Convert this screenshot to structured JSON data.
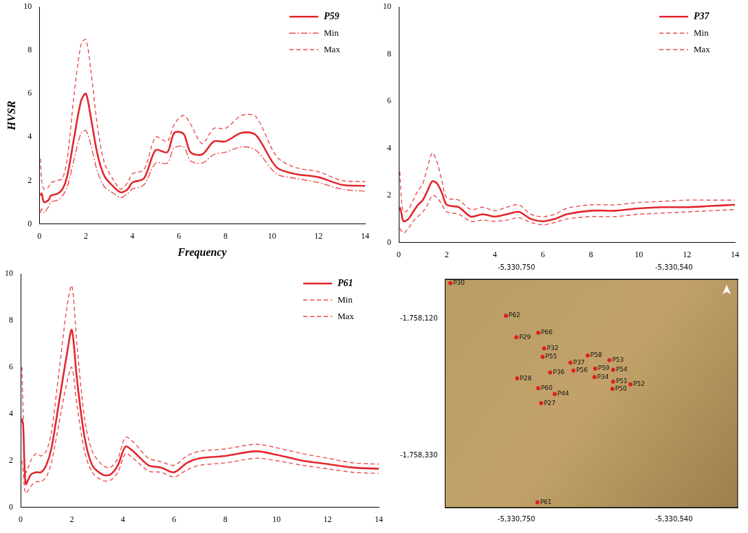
{
  "chart_data": [
    {
      "type": "line",
      "x_label": "Frequency",
      "y_label": "HVSR",
      "x": [
        0.05,
        0.1,
        0.2,
        0.4,
        0.5,
        0.8,
        1.0,
        1.2,
        1.5,
        1.8,
        2.0,
        2.2,
        2.5,
        2.8,
        3.2,
        3.5,
        3.8,
        4.0,
        4.5,
        5.0,
        5.5,
        5.8,
        6.2,
        6.5,
        7.0,
        7.5,
        8.0,
        8.7,
        9.3,
        10.2,
        11,
        12,
        13,
        14
      ],
      "series": [
        {
          "name": "P59",
          "color": "#e3262b",
          "line_style": "solid",
          "values": [
            1.3,
            1.4,
            1.0,
            1.1,
            1.3,
            1.4,
            1.6,
            2.2,
            4.0,
            5.7,
            6.0,
            5.0,
            3.2,
            2.2,
            1.7,
            1.45,
            1.6,
            1.9,
            2.1,
            3.4,
            3.3,
            4.2,
            4.15,
            3.3,
            3.2,
            3.8,
            3.8,
            4.2,
            4.1,
            2.6,
            2.3,
            2.15,
            1.8,
            1.75
          ]
        },
        {
          "name": "Min",
          "color": "#ec4a4a",
          "line_style": "dashdot",
          "values": [
            0.5,
            0.7,
            0.5,
            0.8,
            1.0,
            1.1,
            1.3,
            1.7,
            3.0,
            4.2,
            4.3,
            3.7,
            2.4,
            1.7,
            1.4,
            1.2,
            1.4,
            1.6,
            1.8,
            2.8,
            2.8,
            3.5,
            3.55,
            2.9,
            2.8,
            3.2,
            3.3,
            3.55,
            3.4,
            2.3,
            2.1,
            1.9,
            1.6,
            1.5
          ]
        },
        {
          "name": "Max",
          "color": "#ec4a4a",
          "line_style": "dashed",
          "values": [
            3.0,
            2.0,
            1.6,
            1.7,
            1.9,
            2.0,
            2.1,
            3.0,
            6.0,
            8.3,
            8.5,
            7.2,
            4.5,
            2.8,
            2.0,
            1.6,
            1.9,
            2.3,
            2.5,
            4.0,
            3.8,
            4.6,
            5.0,
            4.6,
            3.7,
            4.4,
            4.4,
            5.0,
            4.95,
            3.1,
            2.6,
            2.4,
            2.0,
            1.95
          ]
        }
      ],
      "xlim": [
        0,
        14
      ],
      "xticks": [
        0,
        2,
        4,
        6,
        8,
        10,
        12,
        14
      ],
      "ylim": [
        0,
        10
      ],
      "yticks": [
        0,
        2,
        4,
        6,
        8,
        10
      ],
      "grid": false,
      "legend": "upper right"
    },
    {
      "type": "line",
      "x": [
        0.05,
        0.1,
        0.2,
        0.4,
        0.6,
        0.8,
        1.0,
        1.2,
        1.4,
        1.6,
        1.8,
        2.0,
        2.5,
        3.0,
        3.5,
        4.0,
        4.5,
        5.0,
        5.5,
        6.0,
        6.5,
        7.0,
        8.0,
        9.0,
        10,
        11,
        12,
        13,
        14
      ],
      "series": [
        {
          "name": "P37",
          "color": "#e3262b",
          "line_style": "solid",
          "values": [
            1.5,
            1.3,
            0.9,
            1.0,
            1.3,
            1.6,
            1.8,
            2.2,
            2.6,
            2.5,
            2.1,
            1.6,
            1.5,
            1.1,
            1.2,
            1.1,
            1.2,
            1.3,
            1.0,
            0.9,
            1.0,
            1.2,
            1.35,
            1.35,
            1.45,
            1.5,
            1.5,
            1.55,
            1.6
          ]
        },
        {
          "name": "Min",
          "color": "#ec4a4a",
          "line_style": "dashed",
          "values": [
            0.6,
            0.5,
            0.4,
            0.6,
            0.9,
            1.1,
            1.3,
            1.6,
            2.0,
            1.9,
            1.6,
            1.3,
            1.2,
            0.9,
            0.95,
            0.9,
            0.95,
            1.05,
            0.85,
            0.75,
            0.85,
            1.0,
            1.1,
            1.1,
            1.2,
            1.25,
            1.3,
            1.35,
            1.4
          ]
        },
        {
          "name": "Max",
          "color": "#ec4a4a",
          "line_style": "dashed",
          "values": [
            3.0,
            2.0,
            1.3,
            1.4,
            1.8,
            2.2,
            2.5,
            3.2,
            3.8,
            3.4,
            2.6,
            1.9,
            1.8,
            1.4,
            1.5,
            1.35,
            1.5,
            1.6,
            1.2,
            1.1,
            1.2,
            1.45,
            1.6,
            1.6,
            1.7,
            1.75,
            1.8,
            1.8,
            1.8
          ]
        }
      ],
      "xlim": [
        0,
        14
      ],
      "xticks": [
        0,
        2,
        4,
        6,
        8,
        10,
        12,
        14
      ],
      "ylim": [
        0,
        10
      ],
      "yticks": [
        0,
        2,
        4,
        6,
        8,
        10
      ],
      "grid": false,
      "legend": "upper right"
    },
    {
      "type": "line",
      "x": [
        0.05,
        0.1,
        0.2,
        0.4,
        0.6,
        0.8,
        1.0,
        1.2,
        1.5,
        1.8,
        2.0,
        2.2,
        2.5,
        2.8,
        3.2,
        3.5,
        3.8,
        4.1,
        4.4,
        5.0,
        5.5,
        6.0,
        6.5,
        7.0,
        8.0,
        9.2,
        10,
        11,
        12,
        13,
        14
      ],
      "series": [
        {
          "name": "P61",
          "color": "#e3262b",
          "line_style": "solid",
          "values": [
            3.8,
            3.5,
            1.0,
            1.4,
            1.5,
            1.5,
            1.8,
            2.5,
            4.5,
            6.5,
            7.6,
            5.5,
            3.0,
            1.8,
            1.4,
            1.4,
            1.8,
            2.6,
            2.4,
            1.8,
            1.7,
            1.5,
            1.9,
            2.1,
            2.2,
            2.4,
            2.25,
            2.0,
            1.85,
            1.7,
            1.65
          ]
        },
        {
          "name": "Min",
          "color": "#ec4a4a",
          "line_style": "dashed",
          "values": [
            2.0,
            1.5,
            0.6,
            0.9,
            1.1,
            1.1,
            1.3,
            1.9,
            3.6,
            5.3,
            6.0,
            4.4,
            2.4,
            1.5,
            1.15,
            1.15,
            1.5,
            2.3,
            2.1,
            1.55,
            1.5,
            1.3,
            1.6,
            1.8,
            1.9,
            2.1,
            2.0,
            1.8,
            1.65,
            1.5,
            1.45
          ]
        },
        {
          "name": "Max",
          "color": "#ec4a4a",
          "line_style": "dashed",
          "values": [
            6.0,
            4.0,
            1.5,
            2.0,
            2.3,
            2.2,
            2.4,
            3.2,
            5.8,
            8.5,
            9.5,
            7.0,
            3.8,
            2.4,
            1.8,
            1.7,
            2.1,
            3.0,
            2.8,
            2.1,
            1.95,
            1.8,
            2.2,
            2.4,
            2.5,
            2.7,
            2.55,
            2.3,
            2.1,
            1.9,
            1.85
          ]
        }
      ],
      "xlim": [
        0,
        14
      ],
      "xticks": [
        0,
        2,
        4,
        6,
        8,
        10,
        12,
        14
      ],
      "ylim": [
        0,
        10
      ],
      "yticks": [
        0,
        2,
        4,
        6,
        8,
        10
      ],
      "grid": false,
      "legend": "upper right"
    },
    {
      "type": "scatter",
      "color": "#e0201b",
      "marker": "circle",
      "point_labels": [
        "P30",
        "P62",
        "P66",
        "P29",
        "P32",
        "P55",
        "P37",
        "P58",
        "P53",
        "P59",
        "P54",
        "P36",
        "P56",
        "P34",
        "P51",
        "P52",
        "P28",
        "P60",
        "P50",
        "P44",
        "P27",
        "P61"
      ],
      "x": [
        -5330838,
        -5330764,
        -5330721,
        -5330750,
        -5330713,
        -5330715,
        -5330678,
        -5330655,
        -5330626,
        -5330645,
        -5330621,
        -5330705,
        -5330674,
        -5330646,
        -5330621,
        -5330598,
        -5330749,
        -5330721,
        -5330622,
        -5330699,
        -5330717,
        -5330722
      ],
      "values": [
        -1758066,
        -1758116,
        -1758142,
        -1758149,
        -1758166,
        -1758179,
        -1758188,
        -1758177,
        -1758184,
        -1758197,
        -1758199,
        -1758203,
        -1758200,
        -1758210,
        -1758217,
        -1758221,
        -1758212,
        -1758227,
        -1758228,
        -1758236,
        -1758250,
        -1758402
      ],
      "xlim": [
        -5330845,
        -5330455
      ],
      "xticks": [
        {
          "value": -5330750,
          "label": "-5,330,750"
        },
        {
          "value": -5330540,
          "label": "-5,330,540"
        }
      ],
      "ylim": [
        -1758410,
        -1758060
      ],
      "yticks": [
        {
          "value": -1758120,
          "label": "-1,758,120"
        },
        {
          "value": -1758330,
          "label": "-1,758,330"
        }
      ],
      "grid": false
    }
  ]
}
